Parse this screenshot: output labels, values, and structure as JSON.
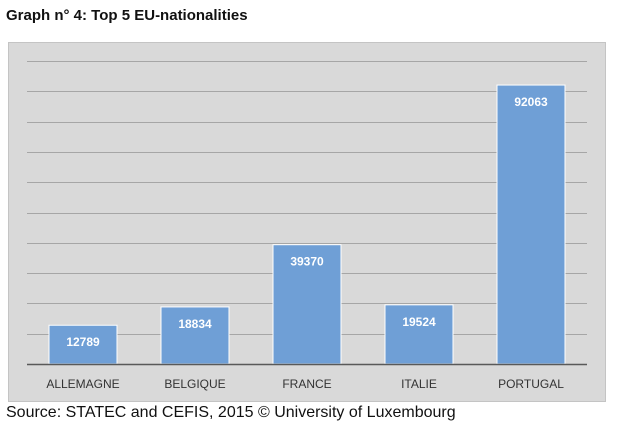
{
  "header": {
    "title": "Graph n° 4: Top 5 EU-nationalities"
  },
  "footer": {
    "source": "Source: STATEC and CEFIS, 2015 © University of Luxembourg"
  },
  "colors": {
    "bar": "#6f9fd6",
    "bar_border": "#ffffff",
    "plot_background": "#d9d9d9",
    "gridline": "#a6a6a6",
    "axis": "#595959",
    "data_label": "#ffffff",
    "tick_label": "#333333"
  },
  "chart_data": {
    "type": "bar",
    "categories": [
      "ALLEMAGNE",
      "BELGIQUE",
      "FRANCE",
      "ITALIE",
      "PORTUGAL"
    ],
    "values": [
      12789,
      18834,
      39370,
      19524,
      92063
    ],
    "data_labels": [
      "12789",
      "18834",
      "39370",
      "19524",
      "92063"
    ],
    "ylim": [
      0,
      100000
    ],
    "grid": true,
    "legend": "none"
  }
}
